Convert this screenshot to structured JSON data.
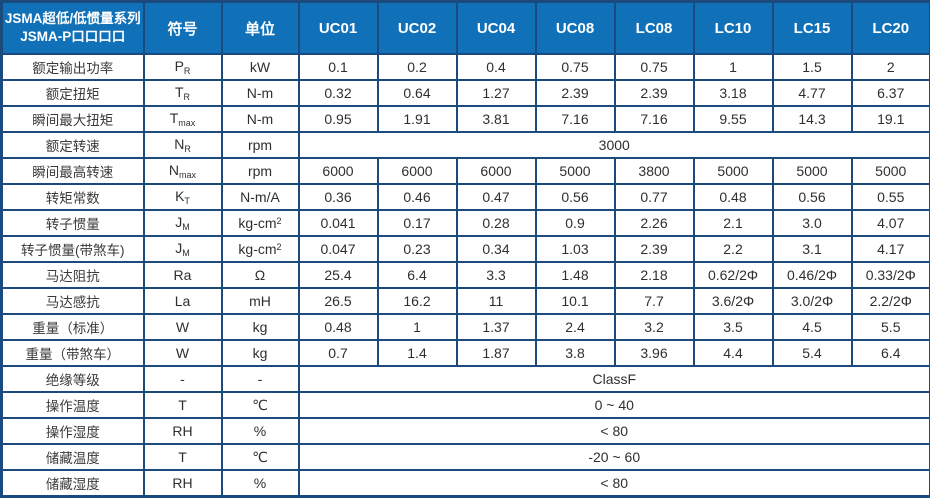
{
  "header": {
    "series_line1": "JSMA超低/低惯量系列",
    "series_line2": "JSMA-P口口口口",
    "symbol_col": "符号",
    "unit_col": "单位",
    "models": [
      "UC01",
      "UC02",
      "UC04",
      "UC08",
      "LC08",
      "LC10",
      "LC15",
      "LC20"
    ]
  },
  "rows": [
    {
      "label": "额定输出功率",
      "symbol": "P",
      "symbol_sub": "R",
      "unit": "kW",
      "values": [
        "0.1",
        "0.2",
        "0.4",
        "0.75",
        "0.75",
        "1",
        "1.5",
        "2"
      ]
    },
    {
      "label": "额定扭矩",
      "symbol": "T",
      "symbol_sub": "R",
      "unit": "N-m",
      "values": [
        "0.32",
        "0.64",
        "1.27",
        "2.39",
        "2.39",
        "3.18",
        "4.77",
        "6.37"
      ]
    },
    {
      "label": "瞬间最大扭矩",
      "symbol": "T",
      "symbol_sub": "max",
      "unit": "N-m",
      "values": [
        "0.95",
        "1.91",
        "3.81",
        "7.16",
        "7.16",
        "9.55",
        "14.3",
        "19.1"
      ]
    },
    {
      "label": "额定转速",
      "symbol": "N",
      "symbol_sub": "R",
      "unit": "rpm",
      "merged": "3000"
    },
    {
      "label": "瞬间最高转速",
      "symbol": "N",
      "symbol_sub": "max",
      "unit": "rpm",
      "values": [
        "6000",
        "6000",
        "6000",
        "5000",
        "3800",
        "5000",
        "5000",
        "5000"
      ]
    },
    {
      "label": "转矩常数",
      "symbol": "K",
      "symbol_sub": "T",
      "unit": "N-m/A",
      "values": [
        "0.36",
        "0.46",
        "0.47",
        "0.56",
        "0.77",
        "0.48",
        "0.56",
        "0.55"
      ]
    },
    {
      "label": "转子惯量",
      "symbol": "J",
      "symbol_sub": "M",
      "unit": "kg-cm",
      "unit_sup": "2",
      "values": [
        "0.041",
        "0.17",
        "0.28",
        "0.9",
        "2.26",
        "2.1",
        "3.0",
        "4.07"
      ]
    },
    {
      "label": "转子惯量(带煞车)",
      "symbol": "J",
      "symbol_sub": "M",
      "unit": "kg-cm",
      "unit_sup": "2",
      "values": [
        "0.047",
        "0.23",
        "0.34",
        "1.03",
        "2.39",
        "2.2",
        "3.1",
        "4.17"
      ]
    },
    {
      "label": "马达阻抗",
      "symbol": "Ra",
      "unit": "Ω",
      "values": [
        "25.4",
        "6.4",
        "3.3",
        "1.48",
        "2.18",
        "0.62/2Φ",
        "0.46/2Φ",
        "0.33/2Φ"
      ]
    },
    {
      "label": "马达感抗",
      "symbol": "La",
      "unit": "mH",
      "values": [
        "26.5",
        "16.2",
        "11",
        "10.1",
        "7.7",
        "3.6/2Φ",
        "3.0/2Φ",
        "2.2/2Φ"
      ]
    },
    {
      "label": "重量（标准）",
      "symbol": "W",
      "unit": "kg",
      "values": [
        "0.48",
        "1",
        "1.37",
        "2.4",
        "3.2",
        "3.5",
        "4.5",
        "5.5"
      ]
    },
    {
      "label": "重量（带煞车）",
      "symbol": "W",
      "unit": "kg",
      "values": [
        "0.7",
        "1.4",
        "1.87",
        "3.8",
        "3.96",
        "4.4",
        "5.4",
        "6.4"
      ]
    },
    {
      "label": "绝缘等级",
      "symbol": "-",
      "unit": "-",
      "merged": "ClassF"
    },
    {
      "label": "操作温度",
      "symbol": "T",
      "unit": "℃",
      "merged": "0 ~ 40"
    },
    {
      "label": "操作湿度",
      "symbol": "RH",
      "unit": "%",
      "merged": "< 80"
    },
    {
      "label": "储藏温度",
      "symbol": "T",
      "unit": "℃",
      "merged": "-20 ~ 60"
    },
    {
      "label": "储藏湿度",
      "symbol": "RH",
      "unit": "%",
      "merged": "< 80"
    }
  ],
  "colors": {
    "header_bg": "#1171b8",
    "border": "#1a4b7c",
    "header_divider": "#92aac9",
    "body_text": "#333333"
  }
}
